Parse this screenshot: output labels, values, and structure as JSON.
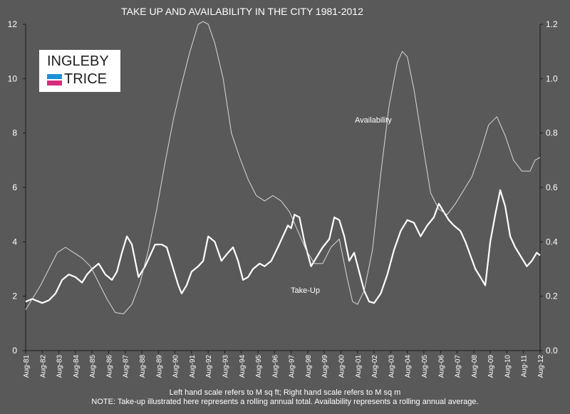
{
  "chart_data": {
    "type": "line",
    "title": "TAKE UP AND AVAILABILITY IN THE CITY 1981-2012",
    "x_tick_labels": [
      "Aug-81",
      "Aug-82",
      "Aug-83",
      "Aug-84",
      "Aug-85",
      "Aug-86",
      "Aug-87",
      "Aug-88",
      "Aug-89",
      "Aug-90",
      "Aug-91",
      "Aug-92",
      "Aug-93",
      "Aug-94",
      "Aug-95",
      "Aug-96",
      "Aug-97",
      "Aug-98",
      "Aug-99",
      "Aug-00",
      "Aug-01",
      "Aug-02",
      "Aug-03",
      "Aug-04",
      "Aug-05",
      "Aug-06",
      "Aug-07",
      "Aug-08",
      "Aug-09",
      "Aug-10",
      "Aug-11",
      "Aug-12"
    ],
    "left_axis": {
      "min": 0,
      "max": 12,
      "ticks": [
        "0",
        "2",
        "4",
        "6",
        "8",
        "10",
        "12"
      ]
    },
    "right_axis": {
      "min": 0.0,
      "max": 1.2,
      "ticks": [
        "0.0",
        "0.2",
        "0.4",
        "0.6",
        "0.8",
        "1.0",
        "1.2"
      ]
    },
    "grid": false,
    "series": [
      {
        "name": "Take-Up",
        "axis": "left",
        "x": [
          1981.6,
          1982.0,
          1982.4,
          1982.6,
          1983.0,
          1983.4,
          1983.8,
          1984.2,
          1984.6,
          1985.0,
          1985.3,
          1985.6,
          1986.0,
          1986.4,
          1986.8,
          1987.1,
          1987.4,
          1987.7,
          1988.0,
          1988.4,
          1988.8,
          1989.1,
          1989.4,
          1989.8,
          1990.1,
          1990.5,
          1990.8,
          1991.0,
          1991.3,
          1991.6,
          1992.0,
          1992.3,
          1992.6,
          1993.0,
          1993.4,
          1993.8,
          1994.1,
          1994.4,
          1994.7,
          1995.0,
          1995.3,
          1995.7,
          1996.0,
          1996.4,
          1996.8,
          1997.1,
          1997.4,
          1997.6,
          1997.8,
          1998.1,
          1998.4,
          1998.8,
          1999.1,
          1999.5,
          1999.9,
          2000.2,
          2000.5,
          2000.8,
          2001.1,
          2001.4,
          2001.7,
          2002.0,
          2002.3,
          2002.6,
          2003.0,
          2003.4,
          2003.8,
          2004.2,
          2004.6,
          2005.0,
          2005.4,
          2005.8,
          2006.2,
          2006.5,
          2006.8,
          2007.1,
          2007.4,
          2007.8,
          2008.1,
          2008.4,
          2008.7,
          2009.0,
          2009.3,
          2009.6,
          2009.9,
          2010.2,
          2010.5,
          2010.8,
          2011.1,
          2011.4,
          2011.8,
          2012.1,
          2012.4,
          2012.6
        ],
        "values": [
          1.8,
          1.9,
          1.8,
          1.75,
          1.85,
          2.1,
          2.6,
          2.8,
          2.7,
          2.5,
          2.8,
          3.0,
          3.2,
          2.8,
          2.6,
          2.9,
          3.6,
          4.2,
          3.9,
          2.7,
          3.1,
          3.5,
          3.9,
          3.9,
          3.8,
          3.0,
          2.4,
          2.1,
          2.4,
          2.9,
          3.1,
          3.3,
          4.2,
          4.0,
          3.3,
          3.6,
          3.8,
          3.3,
          2.6,
          2.7,
          3.0,
          3.2,
          3.1,
          3.3,
          3.8,
          4.2,
          4.6,
          4.5,
          5.0,
          4.9,
          4.0,
          3.1,
          3.4,
          3.8,
          4.1,
          4.9,
          4.8,
          4.2,
          3.3,
          3.6,
          2.9,
          2.2,
          1.8,
          1.75,
          2.1,
          2.8,
          3.7,
          4.4,
          4.8,
          4.7,
          4.2,
          4.6,
          4.9,
          5.4,
          5.1,
          4.8,
          4.6,
          4.4,
          4.0,
          3.5,
          3.0,
          2.7,
          2.4,
          4.0,
          5.0,
          5.9,
          5.3,
          4.2,
          3.8,
          3.5,
          3.1,
          3.3,
          3.6,
          3.5
        ]
      },
      {
        "name": "Availability",
        "axis": "right",
        "x": [
          1981.6,
          1982.0,
          1982.5,
          1983.0,
          1983.5,
          1984.0,
          1984.5,
          1985.0,
          1985.5,
          1986.0,
          1986.5,
          1987.0,
          1987.5,
          1988.0,
          1988.5,
          1989.0,
          1989.5,
          1990.0,
          1990.5,
          1991.0,
          1991.5,
          1992.0,
          1992.3,
          1992.6,
          1993.0,
          1993.5,
          1994.0,
          1994.5,
          1995.0,
          1995.5,
          1996.0,
          1996.5,
          1997.0,
          1997.5,
          1998.0,
          1998.5,
          1999.0,
          1999.5,
          2000.0,
          2000.5,
          2001.0,
          2001.3,
          2001.6,
          2002.0,
          2002.5,
          2003.0,
          2003.5,
          2004.0,
          2004.3,
          2004.6,
          2005.0,
          2005.5,
          2006.0,
          2006.5,
          2007.0,
          2007.5,
          2008.0,
          2008.5,
          2009.0,
          2009.5,
          2010.0,
          2010.5,
          2011.0,
          2011.5,
          2012.0,
          2012.3,
          2012.6
        ],
        "values": [
          0.15,
          0.19,
          0.24,
          0.3,
          0.36,
          0.38,
          0.36,
          0.34,
          0.31,
          0.25,
          0.19,
          0.14,
          0.135,
          0.17,
          0.25,
          0.37,
          0.52,
          0.69,
          0.85,
          0.98,
          1.1,
          1.2,
          1.21,
          1.2,
          1.13,
          1.0,
          0.8,
          0.71,
          0.63,
          0.57,
          0.55,
          0.57,
          0.55,
          0.51,
          0.44,
          0.37,
          0.32,
          0.32,
          0.38,
          0.41,
          0.26,
          0.18,
          0.17,
          0.22,
          0.37,
          0.65,
          0.9,
          1.06,
          1.1,
          1.08,
          0.96,
          0.77,
          0.58,
          0.52,
          0.5,
          0.54,
          0.59,
          0.64,
          0.73,
          0.83,
          0.86,
          0.79,
          0.7,
          0.66,
          0.66,
          0.7,
          0.71
        ]
      }
    ]
  },
  "logo": {
    "line1": "INGLEBY",
    "line2": "TRICE"
  },
  "labels": {
    "availability": "Availability",
    "takeup": "Take-Up"
  },
  "footer": {
    "line1": "Left hand scale refers to M sq ft; Right hand scale refers to M sq m",
    "line2": "NOTE: Take-up  illustrated here represents  a rolling annual  total.  Availability represents  a rolling annual  average."
  },
  "colors": {
    "background": "#595959",
    "takeup": "#ffffff",
    "availability": "#d9d9d9",
    "logo_blue": "#1e8fd5",
    "logo_pink": "#d52d7c"
  }
}
